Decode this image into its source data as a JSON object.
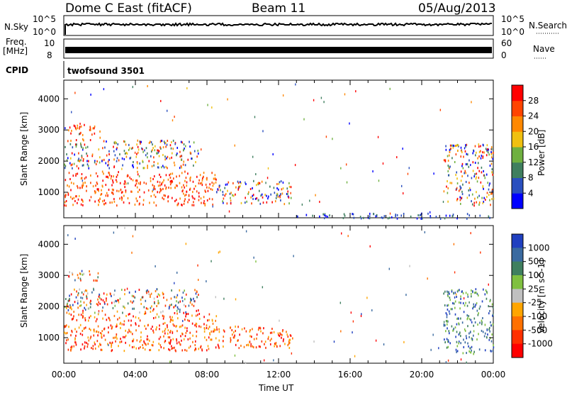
{
  "header": {
    "station": "Dome C East (fitACF)",
    "beam": "Beam 11",
    "date": "05/Aug/2013"
  },
  "panels": {
    "nsky_label": "N.Sky",
    "nsearch_label": "N.Search",
    "nsky_ticks": [
      "10^5",
      "10^0"
    ],
    "freq_label": "Freq.",
    "freq_unit": "[MHz]",
    "freq_ticks": [
      "10",
      "8"
    ],
    "nave_label": "Nave",
    "nave_ticks": [
      "60",
      "0"
    ],
    "cpid_label": "CPID",
    "cpid_value": "twofsound 3501"
  },
  "colors": {
    "power_scale": [
      "#0000ff",
      "#2a4fbf",
      "#3f7f5f",
      "#6fb040",
      "#f0c010",
      "#ff8800",
      "#ff4400",
      "#ff0000"
    ],
    "velocity_scale": [
      "#2040c0",
      "#3a6aa0",
      "#3f7f5f",
      "#80c040",
      "#c0c0c0",
      "#ffa500",
      "#ff7000",
      "#ff3000",
      "#ff0000"
    ]
  },
  "chart_data": [
    {
      "type": "heatmap",
      "title": "Power",
      "xlabel": "Time UT",
      "ylabel": "Slant Range [km]",
      "x_ticks": [
        "00:00",
        "04:00",
        "08:00",
        "12:00",
        "16:00",
        "20:00",
        "00:00"
      ],
      "y_ticks": [
        1000,
        2000,
        3000,
        4000
      ],
      "ylim": [
        180,
        4600
      ],
      "xlim_hours": [
        0,
        24
      ],
      "colorbar": {
        "label": "Power [dB]",
        "ticks": [
          "4",
          "8",
          "12",
          "16",
          "20",
          "24",
          "28"
        ]
      },
      "regions": [
        {
          "t0": 0.0,
          "t1": 8.5,
          "r0": 600,
          "r1": 1700,
          "value": "high"
        },
        {
          "t0": 8.5,
          "t1": 12.8,
          "r0": 650,
          "r1": 1400,
          "value": "mixed"
        },
        {
          "t0": 0.2,
          "t1": 2.0,
          "r0": 2700,
          "r1": 3200,
          "value": "high"
        },
        {
          "t0": 0.0,
          "t1": 7.5,
          "r0": 1800,
          "r1": 2700,
          "value": "mixed"
        },
        {
          "t0": 21.2,
          "t1": 24.0,
          "r0": 600,
          "r1": 2600,
          "value": "mixed"
        },
        {
          "t0": 12.8,
          "t1": 24.0,
          "r0": 180,
          "r1": 350,
          "value": "low"
        }
      ]
    },
    {
      "type": "heatmap",
      "title": "Velocity",
      "xlabel": "Time UT",
      "ylabel": "Slant Range [km]",
      "x_ticks": [
        "00:00",
        "04:00",
        "08:00",
        "12:00",
        "16:00",
        "20:00",
        "00:00"
      ],
      "y_ticks": [
        1000,
        2000,
        3000,
        4000
      ],
      "ylim": [
        180,
        4600
      ],
      "xlim_hours": [
        0,
        24
      ],
      "colorbar": {
        "label": "Velocity [m s^-1]",
        "ticks": [
          "1000",
          "500",
          "100",
          "25",
          "-25",
          "-100",
          "-500",
          "-1000"
        ]
      },
      "regions": [
        {
          "t0": 0.0,
          "t1": 8.5,
          "r0": 600,
          "r1": 1800,
          "value": "away"
        },
        {
          "t0": 8.5,
          "t1": 12.8,
          "r0": 700,
          "r1": 1400,
          "value": "away"
        },
        {
          "t0": 0.2,
          "t1": 2.0,
          "r0": 2850,
          "r1": 3200,
          "value": "mixed"
        },
        {
          "t0": 0.0,
          "t1": 7.5,
          "r0": 1800,
          "r1": 2600,
          "value": "mixed"
        },
        {
          "t0": 21.2,
          "t1": 24.0,
          "r0": 500,
          "r1": 2600,
          "value": "toward"
        }
      ]
    }
  ]
}
